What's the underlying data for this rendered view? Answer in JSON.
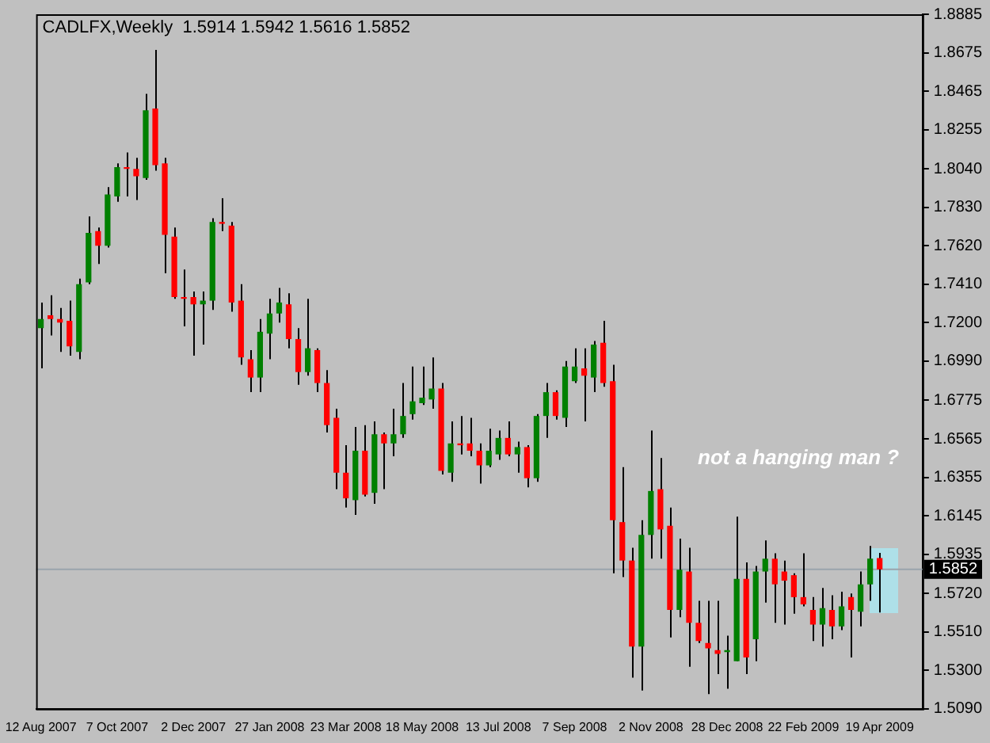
{
  "chart_data": {
    "type": "candlestick",
    "title": "CADLFX,Weekly  1.5914 1.5942 1.5616 1.5852",
    "categories": [
      "12 Aug 2007",
      null,
      null,
      null,
      null,
      null,
      null,
      null,
      "7 Oct 2007",
      null,
      null,
      null,
      null,
      null,
      null,
      null,
      "2 Dec 2007",
      null,
      null,
      null,
      null,
      null,
      null,
      null,
      "27 Jan 2008",
      null,
      null,
      null,
      null,
      null,
      null,
      null,
      "23 Mar 2008",
      null,
      null,
      null,
      null,
      null,
      null,
      null,
      "18 May 2008",
      null,
      null,
      null,
      null,
      null,
      null,
      null,
      "13 Jul 2008",
      null,
      null,
      null,
      null,
      null,
      null,
      null,
      "7 Sep 2008",
      null,
      null,
      null,
      null,
      null,
      null,
      null,
      "2 Nov 2008",
      null,
      null,
      null,
      null,
      null,
      null,
      null,
      "28 Dec 2008",
      null,
      null,
      null,
      null,
      null,
      null,
      null,
      "22 Feb 2009",
      null,
      null,
      null,
      null,
      null,
      null,
      null,
      "19 Apr 2009",
      null,
      null,
      null,
      null
    ],
    "ohlc": [
      [
        1.717,
        1.731,
        1.695,
        1.722
      ],
      [
        1.724,
        1.735,
        1.713,
        1.722
      ],
      [
        1.722,
        1.728,
        1.704,
        1.72
      ],
      [
        1.721,
        1.732,
        1.702,
        1.707
      ],
      [
        1.704,
        1.744,
        1.7,
        1.741
      ],
      [
        1.742,
        1.778,
        1.741,
        1.769
      ],
      [
        1.77,
        1.772,
        1.752,
        1.762
      ],
      [
        1.762,
        1.794,
        1.761,
        1.79
      ],
      [
        1.789,
        1.807,
        1.786,
        1.805
      ],
      [
        1.805,
        1.813,
        1.789,
        1.804
      ],
      [
        1.804,
        1.81,
        1.787,
        1.8
      ],
      [
        1.799,
        1.845,
        1.798,
        1.836
      ],
      [
        1.837,
        1.869,
        1.803,
        1.806
      ],
      [
        1.807,
        1.81,
        1.747,
        1.768
      ],
      [
        1.767,
        1.772,
        1.733,
        1.734
      ],
      [
        1.734,
        1.749,
        1.718,
        1.733
      ],
      [
        1.734,
        1.737,
        1.702,
        1.73
      ],
      [
        1.73,
        1.737,
        1.708,
        1.732
      ],
      [
        1.732,
        1.777,
        1.727,
        1.775
      ],
      [
        1.775,
        1.788,
        1.77,
        1.774
      ],
      [
        1.773,
        1.775,
        1.726,
        1.731
      ],
      [
        1.732,
        1.741,
        1.697,
        1.701
      ],
      [
        1.7,
        1.705,
        1.682,
        1.69
      ],
      [
        1.69,
        1.722,
        1.682,
        1.715
      ],
      [
        1.714,
        1.733,
        1.7,
        1.725
      ],
      [
        1.725,
        1.739,
        1.72,
        1.731
      ],
      [
        1.73,
        1.736,
        1.706,
        1.711
      ],
      [
        1.711,
        1.717,
        1.686,
        1.693
      ],
      [
        1.693,
        1.733,
        1.691,
        1.706
      ],
      [
        1.705,
        1.706,
        1.682,
        1.687
      ],
      [
        1.687,
        1.694,
        1.66,
        1.664
      ],
      [
        1.668,
        1.673,
        1.629,
        1.638
      ],
      [
        1.638,
        1.653,
        1.619,
        1.624
      ],
      [
        1.623,
        1.663,
        1.615,
        1.65
      ],
      [
        1.65,
        1.664,
        1.625,
        1.626
      ],
      [
        1.627,
        1.666,
        1.621,
        1.659
      ],
      [
        1.659,
        1.66,
        1.629,
        1.654
      ],
      [
        1.654,
        1.673,
        1.647,
        1.659
      ],
      [
        1.659,
        1.687,
        1.657,
        1.669
      ],
      [
        1.67,
        1.696,
        1.667,
        1.677
      ],
      [
        1.676,
        1.696,
        1.675,
        1.679
      ],
      [
        1.678,
        1.701,
        1.673,
        1.684
      ],
      [
        1.684,
        1.687,
        1.637,
        1.639
      ],
      [
        1.638,
        1.666,
        1.633,
        1.654
      ],
      [
        1.654,
        1.669,
        1.648,
        1.653
      ],
      [
        1.654,
        1.668,
        1.647,
        1.65
      ],
      [
        1.65,
        1.654,
        1.632,
        1.642
      ],
      [
        1.642,
        1.662,
        1.641,
        1.65
      ],
      [
        1.648,
        1.661,
        1.645,
        1.657
      ],
      [
        1.657,
        1.666,
        1.647,
        1.648
      ],
      [
        1.648,
        1.655,
        1.638,
        1.652
      ],
      [
        1.652,
        1.653,
        1.63,
        1.635
      ],
      [
        1.635,
        1.67,
        1.633,
        1.669
      ],
      [
        1.669,
        1.687,
        1.657,
        1.682
      ],
      [
        1.682,
        1.683,
        1.667,
        1.669
      ],
      [
        1.668,
        1.699,
        1.663,
        1.696
      ],
      [
        1.688,
        1.706,
        1.687,
        1.696
      ],
      [
        1.695,
        1.706,
        1.666,
        1.691
      ],
      [
        1.69,
        1.71,
        1.682,
        1.708
      ],
      [
        1.709,
        1.721,
        1.685,
        1.687
      ],
      [
        1.688,
        1.697,
        1.583,
        1.612
      ],
      [
        1.611,
        1.641,
        1.581,
        1.59
      ],
      [
        1.59,
        1.597,
        1.526,
        1.543
      ],
      [
        1.543,
        1.612,
        1.519,
        1.604
      ],
      [
        1.604,
        1.661,
        1.591,
        1.628
      ],
      [
        1.629,
        1.646,
        1.591,
        1.607
      ],
      [
        1.609,
        1.619,
        1.548,
        1.563
      ],
      [
        1.563,
        1.602,
        1.559,
        1.585
      ],
      [
        1.584,
        1.597,
        1.532,
        1.556
      ],
      [
        1.556,
        1.568,
        1.545,
        1.546
      ],
      [
        1.545,
        1.568,
        1.517,
        1.542
      ],
      [
        1.541,
        1.568,
        1.528,
        1.539
      ],
      [
        1.54,
        1.549,
        1.52,
        1.541
      ],
      [
        1.535,
        1.614,
        1.535,
        1.58
      ],
      [
        1.58,
        1.589,
        1.528,
        1.537
      ],
      [
        1.547,
        1.587,
        1.535,
        1.584
      ],
      [
        1.584,
        1.601,
        1.567,
        1.591
      ],
      [
        1.591,
        1.594,
        1.556,
        1.577
      ],
      [
        1.584,
        1.59,
        1.555,
        1.579
      ],
      [
        1.582,
        1.583,
        1.561,
        1.57
      ],
      [
        1.57,
        1.594,
        1.565,
        1.566
      ],
      [
        1.563,
        1.57,
        1.546,
        1.555
      ],
      [
        1.555,
        1.575,
        1.543,
        1.564
      ],
      [
        1.563,
        1.571,
        1.547,
        1.554
      ],
      [
        1.554,
        1.573,
        1.552,
        1.565
      ],
      [
        1.57,
        1.572,
        1.537,
        1.563
      ],
      [
        1.562,
        1.584,
        1.554,
        1.577
      ],
      [
        1.577,
        1.598,
        1.568,
        1.591
      ],
      [
        1.5914,
        1.5942,
        1.5616,
        1.5852
      ],
      null,
      null,
      null,
      null
    ],
    "colors": [
      "#008000",
      "#ff0000",
      "#ff0000",
      "#ff0000",
      "#008000",
      "#008000",
      "#ff0000",
      "#008000",
      "#008000",
      "#ff0000",
      "#ff0000",
      "#008000",
      "#ff0000",
      "#ff0000",
      "#ff0000",
      "#ff0000",
      "#ff0000",
      "#008000",
      "#008000",
      "#ff0000",
      "#ff0000",
      "#ff0000",
      "#ff0000",
      "#008000",
      "#008000",
      "#008000",
      "#ff0000",
      "#ff0000",
      "#008000",
      "#ff0000",
      "#ff0000",
      "#ff0000",
      "#ff0000",
      "#008000",
      "#ff0000",
      "#008000",
      "#ff0000",
      "#008000",
      "#008000",
      "#008000",
      "#008000",
      "#008000",
      "#ff0000",
      "#008000",
      "#ff0000",
      "#ff0000",
      "#ff0000",
      "#008000",
      "#008000",
      "#ff0000",
      "#008000",
      "#ff0000",
      "#008000",
      "#008000",
      "#ff0000",
      "#008000",
      "#008000",
      "#ff0000",
      "#008000",
      "#ff0000",
      "#ff0000",
      "#ff0000",
      "#ff0000",
      "#008000",
      "#008000",
      "#ff0000",
      "#ff0000",
      "#008000",
      "#ff0000",
      "#ff0000",
      "#ff0000",
      "#ff0000",
      "#008000",
      "#008000",
      "#ff0000",
      "#008000",
      "#008000",
      "#ff0000",
      "#ff0000",
      "#ff0000",
      "#ff0000",
      "#ff0000",
      "#008000",
      "#ff0000",
      "#008000",
      "#ff0000",
      "#008000",
      "#008000",
      "#ff0000",
      null,
      null,
      null,
      null
    ],
    "ylim": [
      1.509,
      1.8885
    ],
    "yticks": [
      {
        "value": 1.509,
        "label": "1.5090"
      },
      {
        "value": 1.53,
        "label": "1.5300"
      },
      {
        "value": 1.551,
        "label": "1.5510"
      },
      {
        "value": 1.572,
        "label": "1.5720"
      },
      1.5935,
      1.6145,
      1.6355,
      1.6565,
      1.6775,
      {
        "value": 1.699,
        "label": "1.6990"
      },
      {
        "value": 1.72,
        "label": "1.7200"
      },
      {
        "value": 1.741,
        "label": "1.7410"
      },
      {
        "value": 1.762,
        "label": "1.7620"
      },
      {
        "value": 1.783,
        "label": "1.7830"
      },
      {
        "value": 1.804,
        "label": "1.8040"
      },
      1.8255,
      1.8465,
      1.8675,
      1.8885
    ],
    "ref_lines": [
      {
        "axis": "y",
        "value": 1.5852,
        "label": "1.5852",
        "color": "#9aa4ac"
      }
    ],
    "annotations": [
      "not a hanging man ?"
    ],
    "grid": false,
    "legend": false
  }
}
